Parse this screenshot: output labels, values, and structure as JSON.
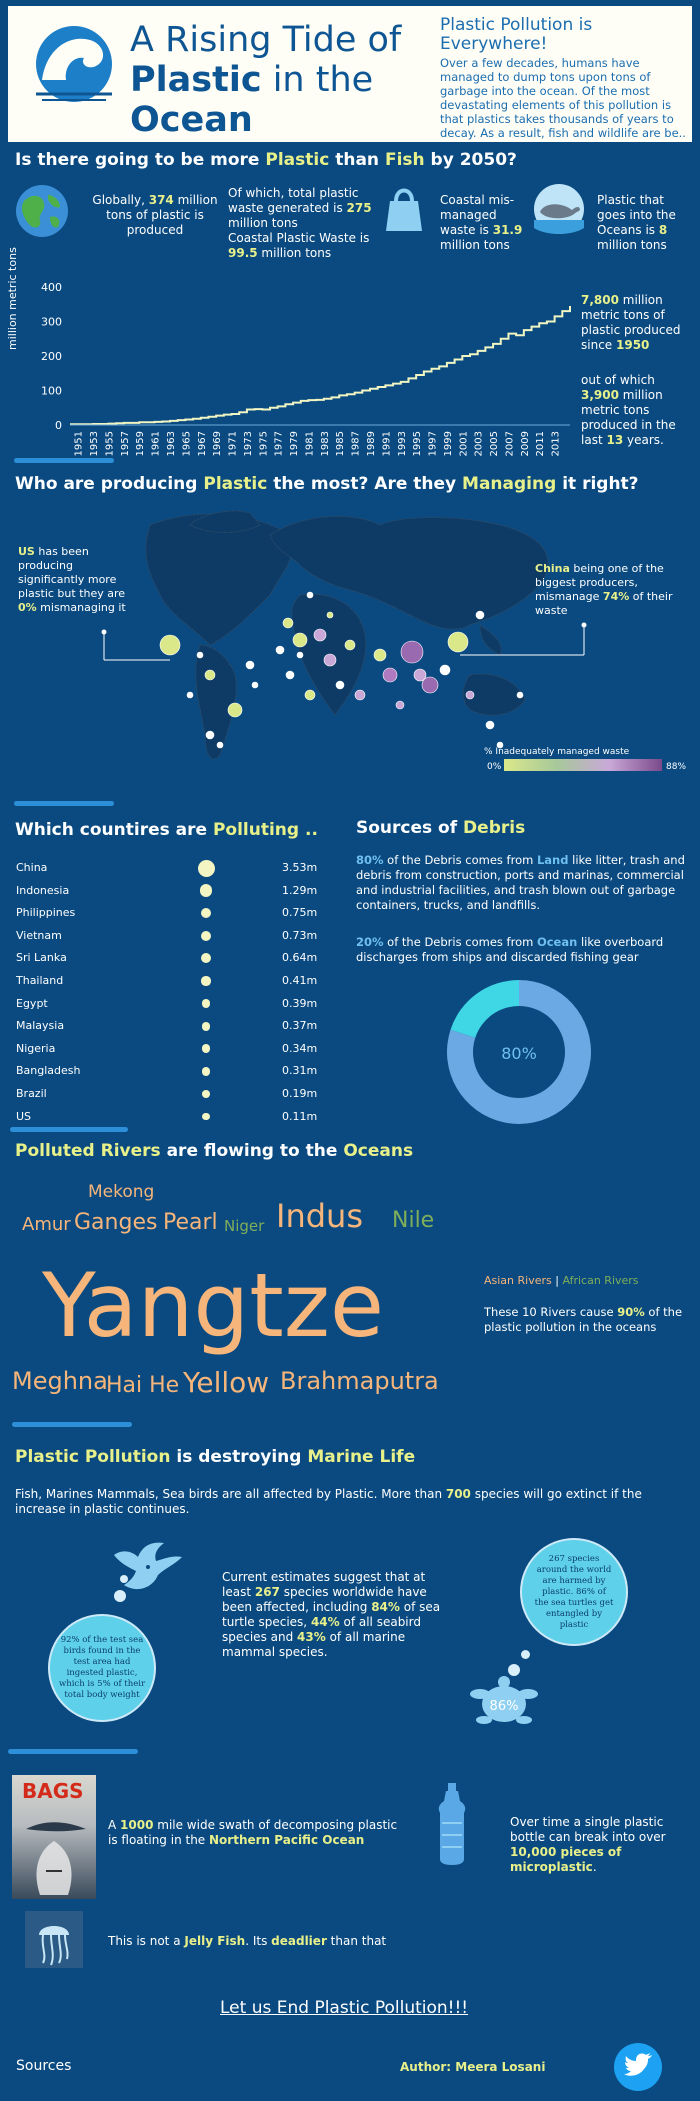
{
  "header": {
    "title_line1": "A Rising Tide of",
    "title_bold1": "Plastic",
    "title_rest2": " in the",
    "title_bold2": "Ocean",
    "intro_head": "Plastic Pollution is Everywhere!",
    "intro_body": "Over a few decades, humans have managed to dump tons upon tons of garbage into the ocean. Of the most devastating elements of this pollution is that plastics takes thousands of years to decay. As a result, fish and wildlife are be.."
  },
  "section1": {
    "q_pre": "Is there going to be more ",
    "q_plastic": "Plastic",
    "q_mid": " than ",
    "q_fish": "Fish",
    "q_post": " by 2050?",
    "stat1_pre": "Globally, ",
    "stat1_val": "374",
    "stat1_post": " million tons of plastic is produced",
    "stat2_pre": "Of which, total plastic waste generated is ",
    "stat2_val": "275",
    "stat2_mid": " million tons",
    "stat2_b": "Coastal Plastic Waste is ",
    "stat2_val2": "99.5",
    "stat2_post": " million tons",
    "stat3_pre": "Coastal mis-managed waste is ",
    "stat3_val": "31.9",
    "stat3_post": " million tons",
    "stat4_pre": "Plastic that goes into the Oceans is ",
    "stat4_val": "8",
    "stat4_post": " million tons"
  },
  "chart_data": {
    "type": "area",
    "ylabel": "million metric tons",
    "ylim": [
      0,
      400
    ],
    "yticks": [
      0,
      100,
      200,
      300,
      400
    ],
    "xticks": [
      "1951",
      "1953",
      "1955",
      "1957",
      "1959",
      "1961",
      "1963",
      "1965",
      "1967",
      "1969",
      "1971",
      "1973",
      "1975",
      "1977",
      "1979",
      "1981",
      "1983",
      "1985",
      "1987",
      "1989",
      "1991",
      "1993",
      "1995",
      "1997",
      "1999",
      "2001",
      "2003",
      "2005",
      "2007",
      "2009",
      "2011",
      "2013"
    ],
    "x": [
      1950,
      1951,
      1952,
      1953,
      1954,
      1955,
      1956,
      1957,
      1958,
      1959,
      1960,
      1961,
      1962,
      1963,
      1964,
      1965,
      1966,
      1967,
      1968,
      1969,
      1970,
      1971,
      1972,
      1973,
      1974,
      1975,
      1976,
      1977,
      1978,
      1979,
      1980,
      1981,
      1982,
      1983,
      1984,
      1985,
      1986,
      1987,
      1988,
      1989,
      1990,
      1991,
      1992,
      1993,
      1994,
      1995,
      1996,
      1997,
      1998,
      1999,
      2000,
      2001,
      2002,
      2003,
      2004,
      2005,
      2006,
      2007,
      2008,
      2009,
      2010,
      2011,
      2012,
      2013,
      2014,
      2015
    ],
    "values": [
      2,
      2,
      2,
      3,
      3,
      4,
      5,
      6,
      6,
      8,
      8,
      9,
      10,
      12,
      14,
      16,
      18,
      21,
      24,
      27,
      30,
      32,
      37,
      45,
      46,
      45,
      50,
      54,
      60,
      65,
      70,
      72,
      73,
      76,
      80,
      86,
      89,
      94,
      100,
      105,
      110,
      115,
      120,
      125,
      135,
      145,
      155,
      163,
      170,
      180,
      190,
      200,
      205,
      215,
      225,
      235,
      250,
      265,
      260,
      275,
      285,
      295,
      300,
      315,
      330,
      345
    ]
  },
  "chart_notes": {
    "n1_val": "7,800",
    "n1_text": " million metric tons of plastic produced since ",
    "n1_year": "1950",
    "n2_pre": "out of which ",
    "n2_val": "3,900",
    "n2_mid": " million metric tons produced in the last ",
    "n2_yrs": "13",
    "n2_post": " years."
  },
  "section2": {
    "q_pre": "Who are producing ",
    "q_plastic": "Plastic",
    "q_mid": " the most? Are they ",
    "q_managing": "Managing",
    "q_post": " it right?",
    "us_a": "US",
    "us_b": " has been producing significantly more plastic but they are ",
    "us_c": "0%",
    "us_d": " mismanaging it",
    "china_a": "China",
    "china_b": " being one of the biggest producers, mismanage ",
    "china_c": "74%",
    "china_d": " of their waste",
    "legend_title": "% Inadequately managed waste",
    "legend_min": "0%",
    "legend_max": "88%"
  },
  "countries": {
    "title_pre": "Which countires are ",
    "title_hl": "Polluting ..",
    "rows": [
      {
        "name": "China",
        "value": "3.53m",
        "v": 3.53
      },
      {
        "name": "Indonesia",
        "value": "1.29m",
        "v": 1.29
      },
      {
        "name": "Philippines",
        "value": "0.75m",
        "v": 0.75
      },
      {
        "name": "Vietnam",
        "value": "0.73m",
        "v": 0.73
      },
      {
        "name": "Sri Lanka",
        "value": "0.64m",
        "v": 0.64
      },
      {
        "name": "Thailand",
        "value": "0.41m",
        "v": 0.41
      },
      {
        "name": "Egypt",
        "value": "0.39m",
        "v": 0.39
      },
      {
        "name": "Malaysia",
        "value": "0.37m",
        "v": 0.37
      },
      {
        "name": "Nigeria",
        "value": "0.34m",
        "v": 0.34
      },
      {
        "name": "Bangladesh",
        "value": "0.31m",
        "v": 0.31
      },
      {
        "name": "Brazil",
        "value": "0.19m",
        "v": 0.19
      },
      {
        "name": "US",
        "value": "0.11m",
        "v": 0.11
      }
    ]
  },
  "debris": {
    "title_pre": "Sources of ",
    "title_hl": "Debris",
    "p1_pct": "80%",
    "p1_a": " of the Debris comes from ",
    "p1_land": "Land",
    "p1_b": " like litter, trash and debris from construction, ports and marinas, commercial and industrial facilities, and trash blown out of garbage containers, trucks, and landfills.",
    "p2_pct": "20%",
    "p2_a": " of the Debris comes from ",
    "p2_ocean": "Ocean",
    "p2_b": " like overboard discharges from ships and discarded fishing gear",
    "donut_label": "80%",
    "land_share": 80,
    "ocean_share": 20,
    "land_color": "#6aa9e3",
    "ocean_color": "#3fd6e6"
  },
  "rivers": {
    "title_a": "Polluted Rivers",
    "title_b": " are flowing to the ",
    "title_c": "Oceans",
    "names": {
      "mekong": "Mekong",
      "amur": "Amur",
      "ganges": "Ganges",
      "pearl": "Pearl",
      "niger": "Niger",
      "indus": "Indus",
      "nile": "Nile",
      "yangtze": "Yangtze",
      "meghna": "Meghna",
      "haihe": "Hai He",
      "yellow": "Yellow",
      "brahmaputra": "Brahmaputra"
    },
    "legend_asian": "Asian Rivers",
    "legend_sep": " | ",
    "legend_african": "African Rivers",
    "note_a": "These 10 Rivers cause ",
    "note_b": "90%",
    "note_c": " of the plastic pollution in the oceans",
    "asian_color": "#f6b57a",
    "african_color": "#7fae5a"
  },
  "marine": {
    "title_a": "Plastic Pollution",
    "title_b": " is destroying ",
    "title_c": "Marine Life",
    "intro_a": "Fish, Marines Mammals, Sea birds are all affected by Plastic. More than ",
    "intro_b": "700",
    "intro_c": " species will go extinct if the increase in plastic continues.",
    "est_a": "Current estimates suggest that at least ",
    "est_b": "267",
    "est_c": " species worldwide have been affected, including ",
    "est_d": "84%",
    "est_e": " of sea turtle species, ",
    "est_f": "44%",
    "est_g": " of all seabird species and ",
    "est_h": "43%",
    "est_i": " of all marine mammal species.",
    "bubble_bird": "92% of the test sea birds found in the test area had ingested plastic, which is 5% of their total body weight",
    "bubble_turtle": "267 species around the world are harmed by plastic. 86% of the sea turtles get entangled by plastic",
    "turtle_pct": "86%"
  },
  "bottom": {
    "bags": "BAGS",
    "swath_a": "A ",
    "swath_b": "1000",
    "swath_c": " mile wide swath of decomposing plastic is floating in the ",
    "swath_d": "Northern Pacific Ocean",
    "bottle_a": "Over time a single plastic bottle can break into over ",
    "bottle_b": "10,000 pieces of microplastic",
    "bottle_c": ".",
    "jelly_a": "This is not a ",
    "jelly_b": "Jelly Fish",
    "jelly_c": ". Its ",
    "jelly_d": "deadlier",
    "jelly_e": " than that",
    "cta": "Let us End Plastic Pollution!!!",
    "sources": "Sources",
    "author": "Author: Meera Losani"
  }
}
